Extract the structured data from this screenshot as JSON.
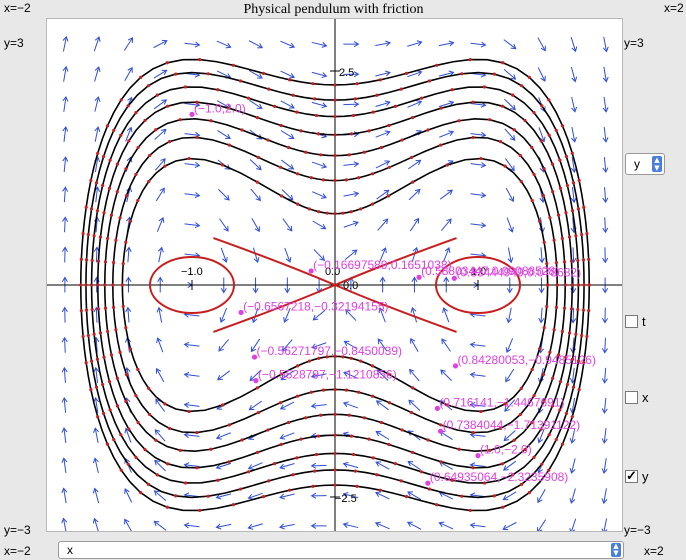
{
  "plot": {
    "title": "Physical pendulum with friction",
    "corners": {
      "top_left_x": "x=−2",
      "top_right_x": "x=2",
      "top_left_y": "y=3",
      "top_right_y": "y=3",
      "bottom_left_y": "y=−3",
      "bottom_right_y": "y=−3",
      "bottom_left_x": "x=−2",
      "bottom_right_x": "x=2"
    },
    "tick_labels": {
      "y_top": "2.5",
      "y_bottom": "−2.5",
      "x_left": "−1.0",
      "x_right": "1.0",
      "origin_x": "0.0",
      "origin_y": "0.0"
    },
    "point_labels": [
      "(−1.0,2.0)",
      "(−0.16697589,0.1651038)",
      "(0.58803447,0.09088528)",
      "(0.83444949,0.078682)",
      "(−0.6567218,−0.32194155)",
      "(−0.56271797,−0.8450039)",
      "(0.84280053,−0.9485126)",
      "(−0.5528797,−1.1210856)",
      "(0.716141,−1.4467691)",
      "(0.7384044,−1.71391122)",
      "(1.0,−2.0)",
      "(0.64935064,−2.3235908)"
    ],
    "colors": {
      "field_arrows": "#2e4fd8",
      "trajectory": "#000000",
      "points": "#c81e1e",
      "labels": "#e040e0"
    }
  },
  "controls": {
    "y_select_value": "y",
    "checkbox_t_label": "t",
    "checkbox_x_label": "x",
    "checkbox_y_label": "y",
    "checkbox_t_checked": false,
    "checkbox_x_checked": false,
    "checkbox_y_checked": true,
    "bottom_select_value": "x"
  }
}
